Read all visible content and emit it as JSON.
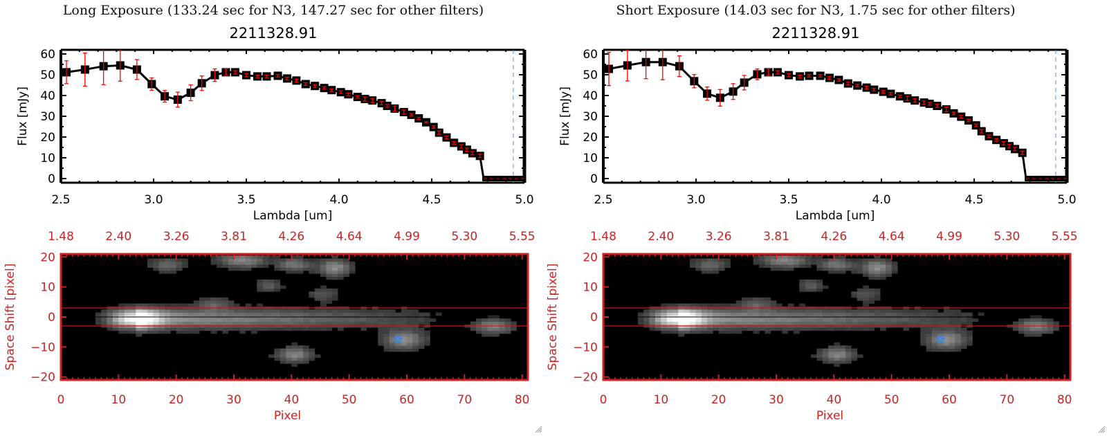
{
  "panels": [
    {
      "id": "long",
      "exposure_title": "Long Exposure (133.24 sec for N3, 147.27 sec for other filters)",
      "object_title": "2211328.91"
    },
    {
      "id": "short",
      "exposure_title": "Short Exposure (14.03 sec for N3, 1.75 sec for other filters)",
      "object_title": "2211328.91"
    }
  ],
  "colors": {
    "line": "#000000",
    "errorbar": "#ff0000",
    "cutoff_line": "#3399ff",
    "zero_line": "#ff0000",
    "image_axis": "#cc2222",
    "aperture_line": "#dd1111",
    "star_marker": "#2288ff"
  },
  "chart_data": [
    {
      "type": "line",
      "panel": "long",
      "title": "2211328.91",
      "xlabel": "Lambda [um]",
      "ylabel": "Flux [mJy]",
      "xlim": [
        2.5,
        5.0
      ],
      "ylim": [
        -2,
        62
      ],
      "xticks": [
        "2.5",
        "3.0",
        "3.5",
        "4.0",
        "4.5",
        "5.0"
      ],
      "xtick_values": [
        2.5,
        3.0,
        3.5,
        4.0,
        4.5,
        5.0
      ],
      "yticks": [
        "0",
        "10",
        "20",
        "30",
        "40",
        "50",
        "60"
      ],
      "ytick_values": [
        0,
        10,
        20,
        30,
        40,
        50,
        60
      ],
      "cutoff_lambda": 4.94,
      "series": [
        {
          "name": "flux",
          "x": [
            2.53,
            2.63,
            2.73,
            2.82,
            2.91,
            2.99,
            3.06,
            3.13,
            3.2,
            3.26,
            3.33,
            3.39,
            3.44,
            3.5,
            3.56,
            3.61,
            3.67,
            3.72,
            3.77,
            3.82,
            3.87,
            3.92,
            3.96,
            4.01,
            4.05,
            4.1,
            4.14,
            4.18,
            4.23,
            4.26,
            4.3,
            4.35,
            4.39,
            4.43,
            4.47,
            4.51,
            4.54,
            4.58,
            4.62,
            4.66,
            4.69,
            4.72,
            4.76,
            4.78,
            5.0
          ],
          "y": [
            51.2,
            52.5,
            54.1,
            54.5,
            52.5,
            45.5,
            39.6,
            38.0,
            41.3,
            45.9,
            49.8,
            51.2,
            51.2,
            49.8,
            49.2,
            49.2,
            49.5,
            48.2,
            47.2,
            45.5,
            44.6,
            43.6,
            42.6,
            41.6,
            40.6,
            39.3,
            38.3,
            37.6,
            36.3,
            35.0,
            33.7,
            32.0,
            30.7,
            29.0,
            27.1,
            24.8,
            22.1,
            19.8,
            17.2,
            15.5,
            13.9,
            12.2,
            10.9,
            0,
            0
          ],
          "yerr": [
            5.5,
            8.0,
            8.9,
            7.6,
            4.8,
            3.0,
            2.8,
            3.6,
            3.8,
            3.5,
            3.0,
            1.6,
            0.8,
            0.8,
            0.6,
            0.6,
            0.6,
            0.6,
            0.6,
            0.6,
            0.6,
            0.6,
            0.6,
            0.6,
            0.6,
            0.6,
            1.0,
            1.0,
            0.8,
            0.6,
            1.2,
            1.0,
            0.6,
            0.5,
            0.3,
            0.6,
            0.8,
            0.6,
            0.6,
            0.8,
            0.8,
            0.8,
            0.8,
            0,
            0
          ]
        }
      ]
    },
    {
      "type": "line",
      "panel": "short",
      "title": "2211328.91",
      "xlabel": "Lambda [um]",
      "ylabel": "Flux [mJy]",
      "xlim": [
        2.5,
        5.0
      ],
      "ylim": [
        -2,
        62
      ],
      "xticks": [
        "2.5",
        "3.0",
        "3.5",
        "4.0",
        "4.5",
        "5.0"
      ],
      "xtick_values": [
        2.5,
        3.0,
        3.5,
        4.0,
        4.5,
        5.0
      ],
      "yticks": [
        "0",
        "10",
        "20",
        "30",
        "40",
        "50",
        "60"
      ],
      "ytick_values": [
        0,
        10,
        20,
        30,
        40,
        50,
        60
      ],
      "cutoff_lambda": 4.94,
      "series": [
        {
          "name": "flux",
          "x": [
            2.53,
            2.63,
            2.73,
            2.82,
            2.91,
            2.99,
            3.06,
            3.13,
            3.2,
            3.26,
            3.33,
            3.39,
            3.44,
            3.5,
            3.56,
            3.61,
            3.67,
            3.72,
            3.77,
            3.82,
            3.87,
            3.92,
            3.96,
            4.01,
            4.05,
            4.1,
            4.14,
            4.18,
            4.23,
            4.26,
            4.3,
            4.35,
            4.39,
            4.43,
            4.47,
            4.51,
            4.54,
            4.58,
            4.62,
            4.66,
            4.69,
            4.72,
            4.76,
            4.78,
            5.0
          ],
          "y": [
            52.8,
            54.5,
            56.1,
            56.1,
            54.1,
            46.9,
            40.9,
            38.9,
            41.9,
            46.2,
            50.2,
            51.2,
            51.2,
            49.8,
            49.2,
            49.5,
            49.5,
            48.5,
            47.5,
            45.8,
            44.8,
            43.8,
            42.8,
            41.8,
            40.8,
            39.6,
            38.6,
            37.6,
            36.6,
            36.0,
            35.0,
            33.3,
            31.4,
            29.8,
            28.0,
            25.6,
            22.8,
            20.4,
            18.6,
            17.0,
            15.6,
            14.2,
            12.4,
            0,
            0
          ],
          "yerr": [
            8.0,
            7.5,
            8.0,
            8.5,
            5.0,
            3.2,
            3.2,
            4.0,
            3.8,
            3.5,
            2.6,
            1.6,
            0.8,
            0.8,
            0.6,
            0.6,
            0.6,
            0.6,
            0.6,
            0.6,
            0.6,
            0.6,
            0.6,
            0.6,
            0.6,
            0.6,
            1.0,
            0.8,
            0.8,
            0.6,
            0.8,
            1.2,
            0.6,
            0.6,
            0.6,
            0.6,
            0.8,
            0.6,
            0.6,
            0.8,
            0.8,
            0.8,
            0.8,
            0,
            0
          ]
        }
      ]
    },
    {
      "type": "heatmap",
      "panel": "long",
      "xlabel": "Pixel",
      "ylabel": "Space Shift [pixel]",
      "xlim": [
        0,
        81
      ],
      "ylim": [
        -21,
        21
      ],
      "xticks": [
        "0",
        "10",
        "20",
        "30",
        "40",
        "50",
        "60",
        "70",
        "80"
      ],
      "xtick_values": [
        0,
        10,
        20,
        30,
        40,
        50,
        60,
        70,
        80
      ],
      "yticks": [
        "20",
        "10",
        "0",
        "-10",
        "-20"
      ],
      "ytick_values": [
        20,
        10,
        0,
        -10,
        -20
      ],
      "top_xticks": [
        "1.48",
        "2.40",
        "3.26",
        "3.81",
        "4.26",
        "4.64",
        "4.99",
        "5.30",
        "5.55"
      ],
      "aperture": [
        -3,
        3
      ],
      "center_row": 0,
      "marker": {
        "symbol": "star",
        "x": 58.5,
        "y": -7.5
      },
      "sources": [
        {
          "x": 12,
          "y": -0.5,
          "amp": 1.0,
          "sx": 3.0,
          "sy": 2.2,
          "tail_to": 70,
          "tail_amp": 0.55
        },
        {
          "x": 18,
          "y": 17.5,
          "amp": 0.35,
          "sx": 2.0,
          "sy": 1.6
        },
        {
          "x": 31,
          "y": 19.0,
          "amp": 0.45,
          "sx": 3.0,
          "sy": 1.8
        },
        {
          "x": 40,
          "y": 17.5,
          "amp": 0.4,
          "sx": 2.0,
          "sy": 1.6
        },
        {
          "x": 47,
          "y": 16.5,
          "amp": 0.5,
          "sx": 2.0,
          "sy": 2.0
        },
        {
          "x": 35.5,
          "y": 10.5,
          "amp": 0.28,
          "sx": 1.5,
          "sy": 1.5
        },
        {
          "x": 45,
          "y": 7.5,
          "amp": 0.25,
          "sx": 2.0,
          "sy": 1.5
        },
        {
          "x": 26,
          "y": 4.5,
          "amp": 0.25,
          "sx": 2.0,
          "sy": 1.5
        },
        {
          "x": 59,
          "y": -7.5,
          "amp": 0.5,
          "sx": 2.6,
          "sy": 2.2
        },
        {
          "x": 40,
          "y": -12.5,
          "amp": 0.45,
          "sx": 2.2,
          "sy": 1.8
        },
        {
          "x": 74.5,
          "y": -3.0,
          "amp": 0.45,
          "sx": 2.4,
          "sy": 1.8
        }
      ]
    },
    {
      "type": "heatmap",
      "panel": "short",
      "xlabel": "Pixel",
      "ylabel": "Space Shift [pixel]",
      "xlim": [
        0,
        81
      ],
      "ylim": [
        -21,
        21
      ],
      "xticks": [
        "0",
        "10",
        "20",
        "30",
        "40",
        "50",
        "60",
        "70",
        "80"
      ],
      "xtick_values": [
        0,
        10,
        20,
        30,
        40,
        50,
        60,
        70,
        80
      ],
      "yticks": [
        "20",
        "10",
        "0",
        "-10",
        "-20"
      ],
      "ytick_values": [
        20,
        10,
        0,
        -10,
        -20
      ],
      "top_xticks": [
        "1.48",
        "2.40",
        "3.26",
        "3.81",
        "4.26",
        "4.64",
        "4.99",
        "5.30",
        "5.55"
      ],
      "aperture": [
        -3,
        3
      ],
      "center_row": 0,
      "marker": {
        "symbol": "star",
        "x": 58.5,
        "y": -7.5
      },
      "sources": [
        {
          "x": 12,
          "y": -0.5,
          "amp": 1.0,
          "sx": 3.0,
          "sy": 2.2,
          "tail_to": 70,
          "tail_amp": 0.55
        },
        {
          "x": 18,
          "y": 17.5,
          "amp": 0.35,
          "sx": 2.0,
          "sy": 1.6
        },
        {
          "x": 31,
          "y": 19.0,
          "amp": 0.45,
          "sx": 3.0,
          "sy": 1.8
        },
        {
          "x": 40,
          "y": 17.5,
          "amp": 0.4,
          "sx": 2.0,
          "sy": 1.6
        },
        {
          "x": 47,
          "y": 16.5,
          "amp": 0.5,
          "sx": 2.0,
          "sy": 2.0
        },
        {
          "x": 35.5,
          "y": 10.5,
          "amp": 0.28,
          "sx": 1.5,
          "sy": 1.5
        },
        {
          "x": 45,
          "y": 7.5,
          "amp": 0.25,
          "sx": 2.0,
          "sy": 1.5
        },
        {
          "x": 26,
          "y": 4.5,
          "amp": 0.25,
          "sx": 2.0,
          "sy": 1.5
        },
        {
          "x": 59,
          "y": -7.5,
          "amp": 0.5,
          "sx": 2.6,
          "sy": 2.2
        },
        {
          "x": 40,
          "y": -12.5,
          "amp": 0.45,
          "sx": 2.2,
          "sy": 1.8
        },
        {
          "x": 74.5,
          "y": -3.0,
          "amp": 0.45,
          "sx": 2.4,
          "sy": 1.8
        }
      ]
    }
  ]
}
